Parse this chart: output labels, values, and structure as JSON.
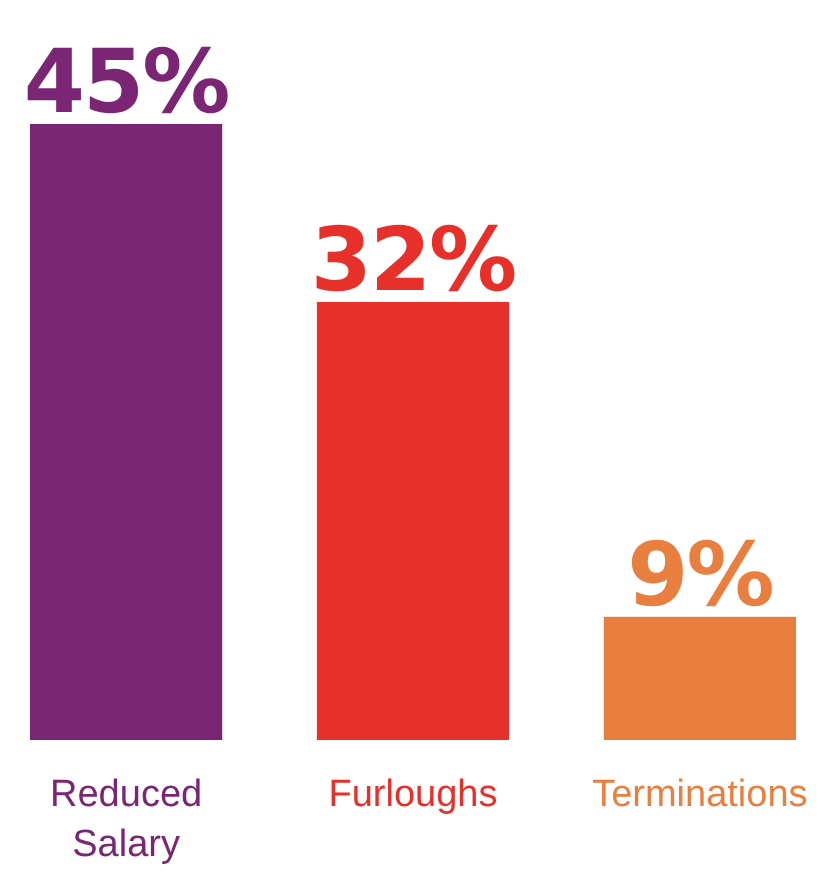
{
  "chart_data": {
    "type": "bar",
    "categories": [
      "Reduced Salary",
      "Furloughs",
      "Terminations"
    ],
    "values": [
      45,
      32,
      9
    ],
    "colors": [
      "#7b2674",
      "#e8302a",
      "#e87f3f"
    ],
    "value_labels": [
      "45%",
      "32%",
      "9%"
    ]
  }
}
